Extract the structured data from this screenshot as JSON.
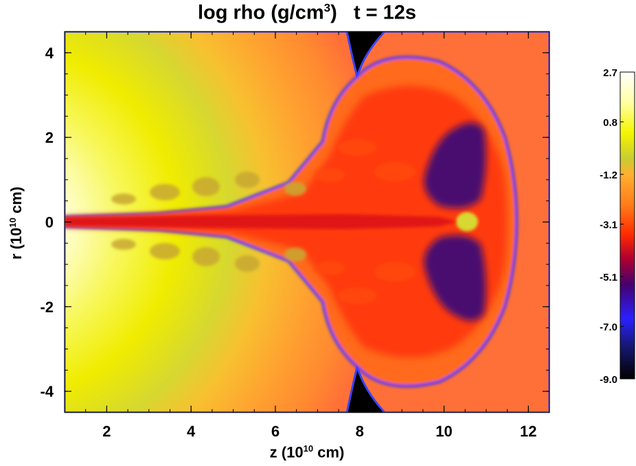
{
  "chart_data": {
    "type": "heatmap",
    "title": {
      "text": "log rho (g/cm",
      "superscript": "3",
      "suffix": ")",
      "time": "t = 12s"
    },
    "xlabel": {
      "text": "z (10",
      "superscript": "10",
      "suffix": " cm)"
    },
    "ylabel": {
      "text": "r (10",
      "superscript": "10",
      "suffix": " cm)"
    },
    "xlim": [
      1.0,
      12.5
    ],
    "ylim": [
      -4.5,
      4.5
    ],
    "x_ticks": [
      2,
      4,
      6,
      8,
      10,
      12
    ],
    "x_tick_labels": [
      "2",
      "4",
      "6",
      "8",
      "10",
      "12"
    ],
    "y_ticks": [
      4,
      2,
      0,
      -2,
      -4
    ],
    "y_tick_labels": [
      "4",
      "2",
      "0",
      "-2",
      "-4"
    ],
    "x_minor_step": 0.5,
    "y_minor_step": 0.5,
    "colorbar": {
      "range": [
        -9.0,
        2.7
      ],
      "tick_values": [
        2.7,
        0.8,
        -1.2,
        -3.1,
        -5.1,
        -7.0,
        -9.0
      ],
      "tick_labels": [
        "2.7",
        "0.8",
        "-1.2",
        "-3.1",
        "-5.1",
        "-7.0",
        "-9.0"
      ],
      "colormap": [
        {
          "value": 2.7,
          "color": "#ffffff"
        },
        {
          "value": 1.5,
          "color": "#ffffa0"
        },
        {
          "value": 0.4,
          "color": "#f5f500"
        },
        {
          "value": -0.6,
          "color": "#c8cc30"
        },
        {
          "value": -1.2,
          "color": "#ffb030"
        },
        {
          "value": -2.4,
          "color": "#ff7a18"
        },
        {
          "value": -3.5,
          "color": "#ff2a00"
        },
        {
          "value": -4.4,
          "color": "#b00030"
        },
        {
          "value": -5.4,
          "color": "#46006e"
        },
        {
          "value": -6.7,
          "color": "#2a20ff"
        },
        {
          "value": -7.7,
          "color": "#181878"
        },
        {
          "value": -9.0,
          "color": "#000000"
        }
      ]
    },
    "grid": false
  }
}
